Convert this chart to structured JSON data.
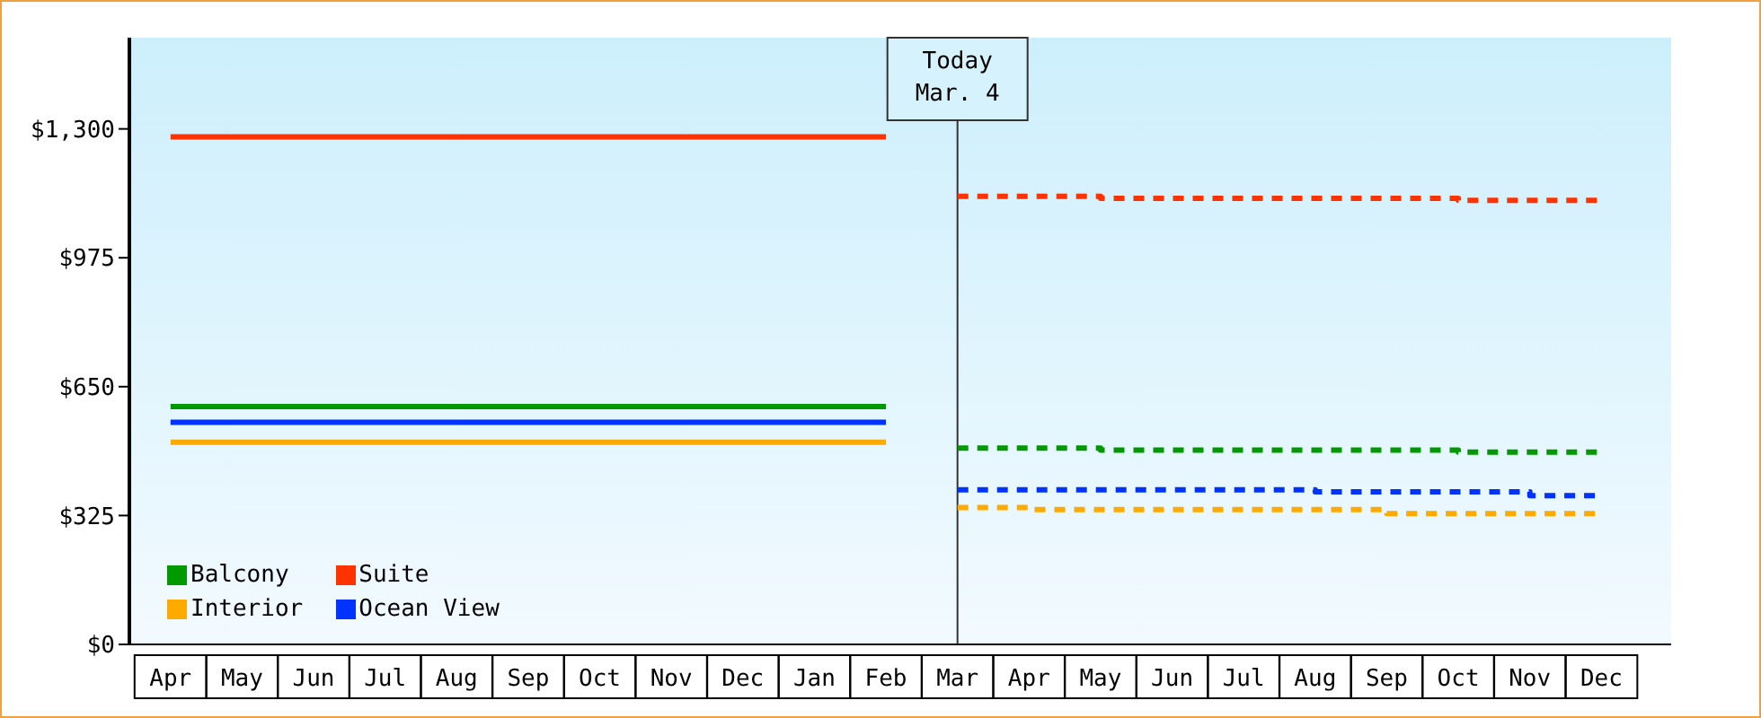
{
  "chart_data": {
    "type": "step",
    "ylim": [
      0,
      1530
    ],
    "categories": [
      "Apr",
      "May",
      "Jun",
      "Jul",
      "Aug",
      "Sep",
      "Oct",
      "Nov",
      "Dec",
      "Jan",
      "Feb",
      "Mar",
      "Apr",
      "May",
      "Jun",
      "Jul",
      "Aug",
      "Sep",
      "Oct",
      "Nov",
      "Dec"
    ],
    "yticks": [
      {
        "value": 0,
        "label": "$0"
      },
      {
        "value": 325,
        "label": "$325"
      },
      {
        "value": 650,
        "label": "$650"
      },
      {
        "value": 975,
        "label": "$975"
      },
      {
        "value": 1300,
        "label": "$1,300"
      }
    ],
    "grid": false,
    "legend": "bottom left",
    "ref_lines": [
      {
        "axis": "x",
        "value": "Mar",
        "label": "Today\nMar. 4",
        "color": "#333333"
      }
    ],
    "series": [
      {
        "name": "Balcony",
        "color": "#009900",
        "marker": "none",
        "line_style": "solid",
        "values": [
          600,
          600,
          600,
          600,
          600,
          600,
          600,
          600,
          600,
          600,
          600,
          null,
          null,
          null,
          null,
          null,
          null,
          null,
          null,
          null,
          null
        ]
      },
      {
        "name": "Suite",
        "color": "#ff3300",
        "marker": "none",
        "line_style": "solid",
        "values": [
          1280,
          1280,
          1280,
          1280,
          1280,
          1280,
          1280,
          1280,
          1280,
          1280,
          1280,
          null,
          null,
          null,
          null,
          null,
          null,
          null,
          null,
          null,
          null
        ]
      },
      {
        "name": "Interior",
        "color": "#ffaa00",
        "marker": "none",
        "line_style": "solid",
        "values": [
          510,
          510,
          510,
          510,
          510,
          510,
          510,
          510,
          510,
          510,
          510,
          null,
          null,
          null,
          null,
          null,
          null,
          null,
          null,
          null,
          null
        ]
      },
      {
        "name": "Ocean View",
        "color": "#0033ff",
        "marker": "none",
        "line_style": "solid",
        "values": [
          560,
          560,
          560,
          560,
          560,
          560,
          560,
          560,
          560,
          560,
          560,
          null,
          null,
          null,
          null,
          null,
          null,
          null,
          null,
          null,
          null
        ]
      },
      {
        "color": "#009900",
        "marker": "none",
        "line_style": "dashed",
        "values": [
          null,
          null,
          null,
          null,
          null,
          null,
          null,
          null,
          null,
          null,
          null,
          495,
          495,
          490,
          490,
          490,
          490,
          490,
          485,
          485,
          485
        ]
      },
      {
        "color": "#ff3300",
        "marker": "none",
        "line_style": "dashed",
        "values": [
          null,
          null,
          null,
          null,
          null,
          null,
          null,
          null,
          null,
          null,
          null,
          1130,
          1130,
          1125,
          1125,
          1125,
          1125,
          1125,
          1120,
          1120,
          1120
        ]
      },
      {
        "color": "#ffaa00",
        "marker": "none",
        "line_style": "dashed",
        "values": [
          null,
          null,
          null,
          null,
          null,
          null,
          null,
          null,
          null,
          null,
          null,
          345,
          340,
          340,
          340,
          340,
          340,
          330,
          330,
          330,
          325
        ]
      },
      {
        "color": "#0033ff",
        "marker": "none",
        "line_style": "dashed",
        "values": [
          null,
          null,
          null,
          null,
          null,
          null,
          null,
          null,
          null,
          null,
          null,
          390,
          390,
          390,
          390,
          390,
          385,
          385,
          385,
          375,
          375
        ]
      }
    ]
  }
}
